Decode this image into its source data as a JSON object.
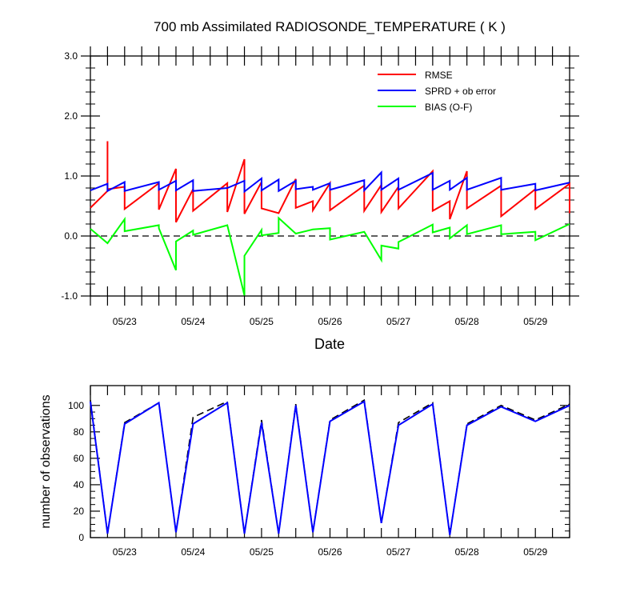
{
  "chart_data": [
    {
      "type": "line",
      "title": "700 mb Assimilated RADIOSONDE_TEMPERATURE ( K )",
      "xlabel": "Date",
      "ylabel": "",
      "x_ticks": [
        "05/23",
        "05/24",
        "05/25",
        "05/26",
        "05/27",
        "05/28",
        "05/29"
      ],
      "y_ticks": [
        "-1.0",
        "0.0",
        "1.0",
        "2.0",
        "3.0"
      ],
      "ylim": [
        -1.0,
        3.0
      ],
      "x_range_days": [
        22.5,
        29.5
      ],
      "reference_line": 0.0,
      "legend_position": "top-right",
      "series": [
        {
          "name": "RMSE",
          "color": "#ff0000",
          "points": [
            [
              22.5,
              0.47
            ],
            [
              22.75,
              0.75
            ],
            [
              22.75,
              1.58
            ],
            [
              22.75,
              0.78
            ],
            [
              23.0,
              0.82
            ],
            [
              23.0,
              0.45
            ],
            [
              23.5,
              0.88
            ],
            [
              23.5,
              0.44
            ],
            [
              23.75,
              1.12
            ],
            [
              23.75,
              0.23
            ],
            [
              24.0,
              0.78
            ],
            [
              24.0,
              0.42
            ],
            [
              24.5,
              0.88
            ],
            [
              24.5,
              0.4
            ],
            [
              24.75,
              1.28
            ],
            [
              24.75,
              0.37
            ],
            [
              25.0,
              0.9
            ],
            [
              25.0,
              0.46
            ],
            [
              25.25,
              0.38
            ],
            [
              25.5,
              0.95
            ],
            [
              25.5,
              0.47
            ],
            [
              25.75,
              0.58
            ],
            [
              25.75,
              0.43
            ],
            [
              26.0,
              0.88
            ],
            [
              26.0,
              0.43
            ],
            [
              26.5,
              0.84
            ],
            [
              26.5,
              0.42
            ],
            [
              26.75,
              0.85
            ],
            [
              26.75,
              0.4
            ],
            [
              27.0,
              0.82
            ],
            [
              27.0,
              0.46
            ],
            [
              27.5,
              1.08
            ],
            [
              27.5,
              0.42
            ],
            [
              27.75,
              0.58
            ],
            [
              27.75,
              0.28
            ],
            [
              28.0,
              1.08
            ],
            [
              28.0,
              0.46
            ],
            [
              28.5,
              0.84
            ],
            [
              28.5,
              0.33
            ],
            [
              29.0,
              0.78
            ],
            [
              29.0,
              0.45
            ],
            [
              29.5,
              0.87
            ],
            [
              29.5,
              0.38
            ]
          ]
        },
        {
          "name": "SPRD + ob error",
          "color": "#0000ff",
          "points": [
            [
              22.5,
              0.76
            ],
            [
              22.75,
              0.87
            ],
            [
              22.75,
              0.75
            ],
            [
              23.0,
              0.9
            ],
            [
              23.0,
              0.75
            ],
            [
              23.5,
              0.9
            ],
            [
              23.5,
              0.77
            ],
            [
              23.75,
              0.92
            ],
            [
              23.75,
              0.76
            ],
            [
              24.0,
              0.93
            ],
            [
              24.0,
              0.75
            ],
            [
              24.5,
              0.8
            ],
            [
              24.75,
              0.92
            ],
            [
              24.75,
              0.74
            ],
            [
              25.0,
              0.96
            ],
            [
              25.0,
              0.76
            ],
            [
              25.25,
              0.94
            ],
            [
              25.25,
              0.75
            ],
            [
              25.5,
              0.92
            ],
            [
              25.5,
              0.78
            ],
            [
              25.75,
              0.82
            ],
            [
              25.75,
              0.77
            ],
            [
              26.0,
              0.88
            ],
            [
              26.0,
              0.77
            ],
            [
              26.5,
              0.93
            ],
            [
              26.5,
              0.76
            ],
            [
              26.75,
              1.06
            ],
            [
              26.75,
              0.77
            ],
            [
              27.0,
              0.96
            ],
            [
              27.0,
              0.77
            ],
            [
              27.5,
              1.05
            ],
            [
              27.5,
              0.77
            ],
            [
              27.75,
              0.92
            ],
            [
              27.75,
              0.77
            ],
            [
              28.0,
              0.97
            ],
            [
              28.0,
              0.77
            ],
            [
              28.5,
              0.97
            ],
            [
              28.5,
              0.77
            ],
            [
              29.0,
              0.87
            ],
            [
              29.0,
              0.76
            ],
            [
              29.5,
              0.89
            ]
          ]
        },
        {
          "name": "BIAS (O-F)",
          "color": "#00ff00",
          "points": [
            [
              22.5,
              0.12
            ],
            [
              22.75,
              -0.12
            ],
            [
              23.0,
              0.28
            ],
            [
              23.0,
              0.08
            ],
            [
              23.5,
              0.18
            ],
            [
              23.5,
              0.13
            ],
            [
              23.75,
              -0.57
            ],
            [
              23.75,
              -0.09
            ],
            [
              24.0,
              0.09
            ],
            [
              24.0,
              0.02
            ],
            [
              24.5,
              0.18
            ],
            [
              24.75,
              -0.99
            ],
            [
              24.75,
              -0.33
            ],
            [
              25.0,
              0.1
            ],
            [
              25.0,
              0.01
            ],
            [
              25.25,
              0.05
            ],
            [
              25.25,
              0.3
            ],
            [
              25.5,
              0.04
            ],
            [
              25.75,
              0.11
            ],
            [
              26.0,
              0.13
            ],
            [
              26.0,
              -0.06
            ],
            [
              26.5,
              0.07
            ],
            [
              26.75,
              -0.4
            ],
            [
              26.75,
              -0.16
            ],
            [
              27.0,
              -0.21
            ],
            [
              27.0,
              -0.1
            ],
            [
              27.5,
              0.19
            ],
            [
              27.5,
              0.06
            ],
            [
              27.75,
              0.14
            ],
            [
              27.75,
              -0.04
            ],
            [
              28.0,
              0.18
            ],
            [
              28.0,
              0.03
            ],
            [
              28.5,
              0.18
            ],
            [
              28.5,
              0.03
            ],
            [
              29.0,
              0.07
            ],
            [
              29.0,
              -0.07
            ],
            [
              29.5,
              0.2
            ]
          ]
        }
      ]
    },
    {
      "type": "line",
      "title": "",
      "xlabel": "",
      "ylabel": "number of observations",
      "x_ticks": [
        "05/23",
        "05/24",
        "05/25",
        "05/26",
        "05/27",
        "05/28",
        "05/29"
      ],
      "y_ticks": [
        "0",
        "20",
        "40",
        "60",
        "80",
        "100"
      ],
      "ylim": [
        0,
        115
      ],
      "x_range_days": [
        22.5,
        29.5
      ],
      "series": [
        {
          "color": "#000000",
          "dashed": true,
          "points": [
            [
              22.5,
              104
            ],
            [
              22.75,
              3
            ],
            [
              23.0,
              87
            ],
            [
              23.5,
              102
            ],
            [
              23.75,
              4
            ],
            [
              24.0,
              91
            ],
            [
              24.5,
              103
            ],
            [
              24.75,
              3
            ],
            [
              25.0,
              89
            ],
            [
              25.25,
              3
            ],
            [
              25.5,
              101
            ],
            [
              25.75,
              4
            ],
            [
              26.0,
              89
            ],
            [
              26.5,
              104
            ],
            [
              26.75,
              11
            ],
            [
              27.0,
              87
            ],
            [
              27.5,
              102
            ],
            [
              27.75,
              2
            ],
            [
              28.0,
              86
            ],
            [
              28.5,
              100
            ],
            [
              29.0,
              89
            ],
            [
              29.5,
              101
            ]
          ]
        },
        {
          "color": "#0000ff",
          "dashed": false,
          "points": [
            [
              22.5,
              103
            ],
            [
              22.75,
              3
            ],
            [
              23.0,
              86
            ],
            [
              23.5,
              102
            ],
            [
              23.75,
              4
            ],
            [
              24.0,
              86
            ],
            [
              24.5,
              102
            ],
            [
              24.75,
              3
            ],
            [
              25.0,
              87
            ],
            [
              25.25,
              3
            ],
            [
              25.5,
              100
            ],
            [
              25.75,
              4
            ],
            [
              26.0,
              88
            ],
            [
              26.5,
              103
            ],
            [
              26.75,
              11
            ],
            [
              27.0,
              85
            ],
            [
              27.5,
              101
            ],
            [
              27.75,
              2
            ],
            [
              28.0,
              85
            ],
            [
              28.5,
              99
            ],
            [
              29.0,
              88
            ],
            [
              29.5,
              100
            ]
          ]
        }
      ]
    }
  ]
}
